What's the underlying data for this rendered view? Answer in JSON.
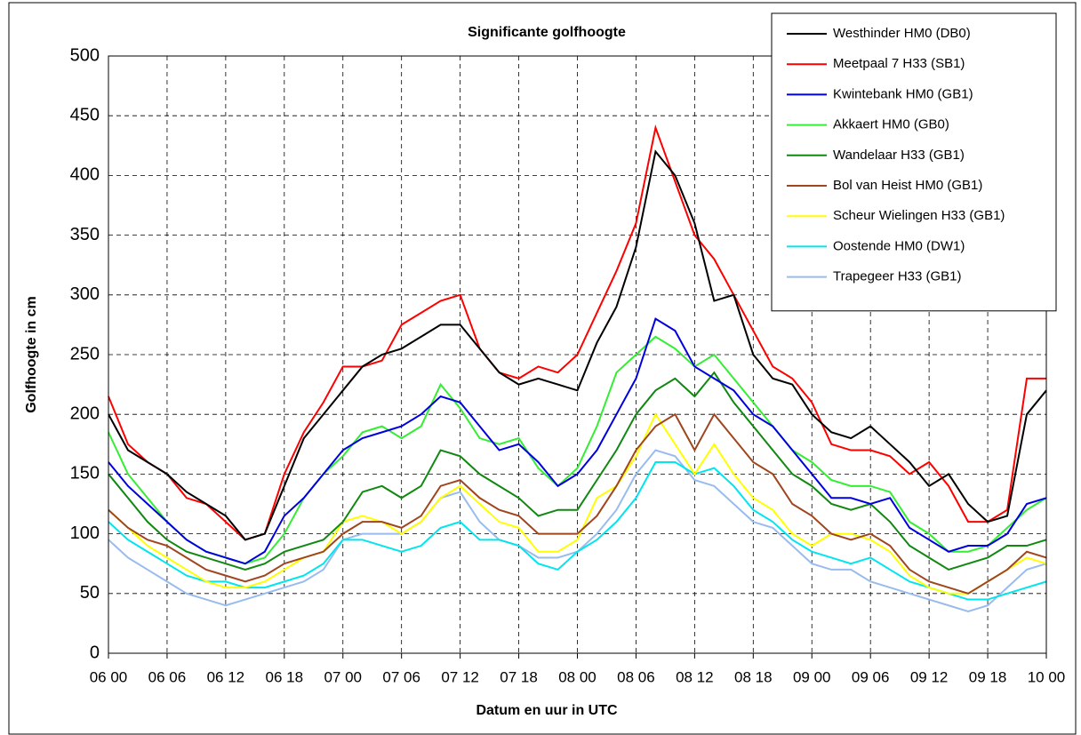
{
  "chart_data": {
    "type": "line",
    "title": "Significante golfhoogte",
    "xlabel": "Datum en uur in UTC",
    "ylabel": "Golfhoogte in cm",
    "categories": [
      "06 00",
      null,
      null,
      "06 06",
      null,
      null,
      "06 12",
      null,
      null,
      "06 18",
      null,
      null,
      "07 00",
      null,
      null,
      "07 06",
      null,
      null,
      "07 12",
      null,
      null,
      "07 18",
      null,
      null,
      "08 00",
      null,
      null,
      "08 06",
      null,
      null,
      "08 12",
      null,
      null,
      "08 18",
      null,
      null,
      "09 00",
      null,
      null,
      "09 06",
      null,
      null,
      "09 12",
      null,
      null,
      "09 18",
      null,
      null,
      "10 00"
    ],
    "ylim": [
      0,
      500
    ],
    "yticks": [
      0,
      50,
      100,
      150,
      200,
      250,
      300,
      350,
      400,
      450,
      500
    ],
    "grid": true,
    "legend": "top-right",
    "series": [
      {
        "name": "Westhinder HM0 (DB0)",
        "color": "#000000",
        "values": [
          200,
          170,
          160,
          150,
          135,
          125,
          115,
          95,
          100,
          140,
          180,
          200,
          220,
          240,
          250,
          255,
          265,
          275,
          275,
          255,
          235,
          225,
          230,
          225,
          220,
          260,
          290,
          340,
          420,
          400,
          360,
          295,
          300,
          250,
          230,
          225,
          200,
          185,
          180,
          190,
          175,
          160,
          140,
          150,
          125,
          110,
          115,
          200,
          220
        ]
      },
      {
        "name": "Meetpaal 7 H33 (SB1)",
        "color": "#ff0000",
        "values": [
          215,
          175,
          160,
          150,
          130,
          125,
          110,
          95,
          100,
          150,
          185,
          210,
          240,
          240,
          245,
          275,
          285,
          295,
          300,
          255,
          235,
          230,
          240,
          235,
          250,
          285,
          320,
          360,
          440,
          395,
          350,
          330,
          300,
          270,
          240,
          230,
          210,
          175,
          170,
          170,
          165,
          150,
          160,
          140,
          110,
          110,
          120,
          230,
          230
        ]
      },
      {
        "name": "Kwintebank HM0 (GB1)",
        "color": "#0000dd",
        "values": [
          160,
          140,
          125,
          110,
          95,
          85,
          80,
          75,
          85,
          115,
          130,
          150,
          170,
          180,
          185,
          190,
          200,
          215,
          210,
          190,
          170,
          175,
          160,
          140,
          150,
          170,
          200,
          230,
          280,
          270,
          240,
          230,
          220,
          200,
          190,
          170,
          150,
          130,
          130,
          125,
          130,
          105,
          95,
          85,
          90,
          90,
          100,
          125,
          130
        ]
      },
      {
        "name": "Akkaert HM0 (GB0)",
        "color": "#33ee33",
        "values": [
          185,
          150,
          130,
          110,
          95,
          85,
          80,
          75,
          80,
          100,
          130,
          150,
          165,
          185,
          190,
          180,
          190,
          225,
          205,
          180,
          175,
          180,
          155,
          140,
          155,
          190,
          235,
          250,
          265,
          255,
          240,
          250,
          230,
          210,
          190,
          170,
          160,
          145,
          140,
          140,
          135,
          110,
          100,
          85,
          85,
          90,
          105,
          120,
          130
        ]
      },
      {
        "name": "Wandelaar H33 (GB1)",
        "color": "#118811",
        "values": [
          150,
          130,
          110,
          95,
          85,
          80,
          75,
          70,
          75,
          85,
          90,
          95,
          110,
          135,
          140,
          130,
          140,
          170,
          165,
          150,
          140,
          130,
          115,
          120,
          120,
          145,
          170,
          200,
          220,
          230,
          215,
          235,
          210,
          190,
          170,
          150,
          140,
          125,
          120,
          125,
          110,
          90,
          80,
          70,
          75,
          80,
          90,
          90,
          95
        ]
      },
      {
        "name": "Bol van Heist HM0 (GB1)",
        "color": "#a0461e",
        "values": [
          120,
          105,
          95,
          90,
          80,
          70,
          65,
          60,
          65,
          75,
          80,
          85,
          100,
          110,
          110,
          105,
          115,
          140,
          145,
          130,
          120,
          115,
          100,
          100,
          100,
          115,
          140,
          170,
          190,
          200,
          170,
          200,
          180,
          160,
          150,
          125,
          115,
          100,
          95,
          100,
          90,
          70,
          60,
          55,
          50,
          60,
          70,
          85,
          80
        ]
      },
      {
        "name": "Scheur Wielingen H33 (GB1)",
        "color": "#ffff00",
        "values": [
          120,
          105,
          90,
          80,
          70,
          60,
          55,
          55,
          60,
          70,
          80,
          85,
          110,
          115,
          110,
          100,
          110,
          130,
          140,
          125,
          110,
          105,
          85,
          85,
          95,
          130,
          140,
          165,
          200,
          175,
          150,
          175,
          150,
          130,
          120,
          100,
          90,
          100,
          100,
          95,
          85,
          65,
          55,
          50,
          50,
          60,
          70,
          80,
          75
        ]
      },
      {
        "name": "Oostende HM0 (DW1)",
        "color": "#00e5ee",
        "values": [
          110,
          95,
          85,
          75,
          65,
          60,
          60,
          55,
          55,
          60,
          65,
          75,
          95,
          95,
          90,
          85,
          90,
          105,
          110,
          95,
          95,
          90,
          75,
          70,
          85,
          95,
          110,
          130,
          160,
          160,
          150,
          155,
          140,
          120,
          110,
          95,
          85,
          80,
          75,
          80,
          70,
          60,
          55,
          50,
          45,
          45,
          50,
          55,
          60
        ]
      },
      {
        "name": "Trapegeer H33 (GB1)",
        "color": "#99bbee",
        "values": [
          95,
          80,
          70,
          60,
          50,
          45,
          40,
          45,
          50,
          55,
          60,
          70,
          95,
          100,
          100,
          100,
          110,
          130,
          135,
          110,
          95,
          90,
          80,
          80,
          85,
          100,
          120,
          150,
          170,
          165,
          145,
          140,
          125,
          110,
          105,
          90,
          75,
          70,
          70,
          60,
          55,
          50,
          45,
          40,
          35,
          40,
          55,
          70,
          75
        ]
      }
    ]
  }
}
